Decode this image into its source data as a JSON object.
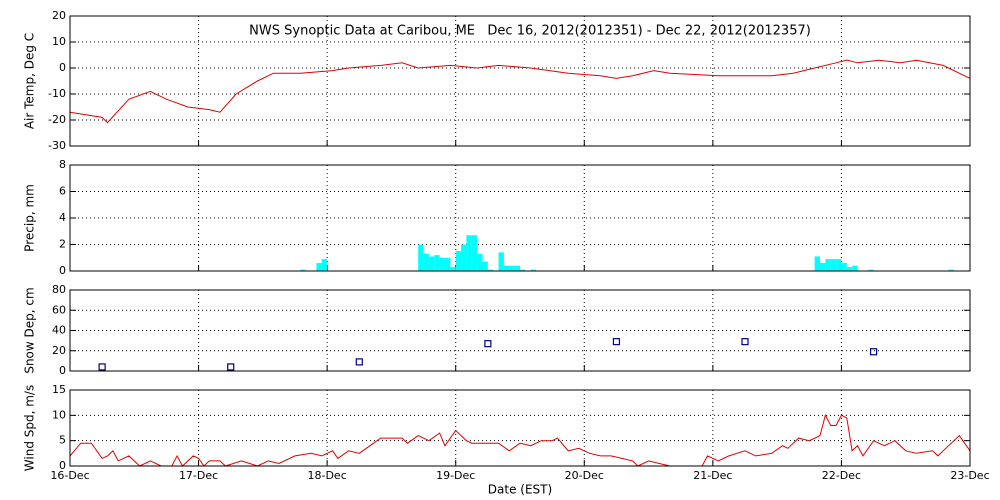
{
  "chart_data": [
    {
      "type": "line",
      "title": "NWS Synoptic Data at Caribou, ME   Dec 16, 2012(2012351) - Dec 22, 2012(2012357)",
      "y_label": "Air Temp, Deg C",
      "color": "#e00000",
      "x": [
        0,
        6,
        7,
        11,
        15,
        18,
        22,
        26,
        28,
        31,
        35,
        38,
        43,
        49,
        52,
        58,
        62,
        65,
        71,
        76,
        80,
        86,
        93,
        99,
        102,
        105,
        109,
        112,
        121,
        131,
        135,
        139,
        143,
        145,
        147,
        151,
        155,
        158,
        163,
        167,
        168
      ],
      "values": [
        -17,
        -19,
        -21,
        -12,
        -9,
        -12,
        -15,
        -16,
        -17,
        -10,
        -5,
        -2,
        -2,
        -1,
        0,
        1,
        2,
        0,
        1,
        0,
        1,
        0,
        -2,
        -3,
        -4,
        -3,
        -1,
        -2,
        -3,
        -3,
        -2,
        0,
        2,
        3,
        2,
        3,
        2,
        3,
        1,
        -3,
        -4
      ],
      "xlim": [
        0,
        168
      ],
      "xticks": [
        0,
        24,
        48,
        72,
        96,
        120,
        144,
        168
      ],
      "ylim": [
        -30,
        20
      ],
      "yticks": [
        -30,
        -20,
        -10,
        0,
        10,
        20
      ],
      "grid": true
    },
    {
      "type": "bar",
      "y_label": "Precip, mm",
      "color": "#00ffff",
      "x": [
        43,
        46,
        47,
        65,
        66,
        67,
        68,
        69,
        70,
        71,
        72,
        73,
        74,
        75,
        76,
        77,
        78,
        80,
        81,
        82,
        83,
        84,
        86,
        139,
        140,
        141,
        142,
        143,
        144,
        145,
        146,
        149,
        164
      ],
      "values": [
        0.1,
        0.6,
        0.9,
        2.0,
        1.3,
        1.1,
        1.2,
        1.0,
        1.0,
        0.3,
        1.5,
        2.0,
        2.7,
        2.7,
        1.3,
        0.7,
        0.1,
        1.4,
        0.4,
        0.4,
        0.4,
        0.1,
        0.1,
        1.1,
        0.6,
        0.9,
        0.9,
        0.9,
        0.6,
        0.3,
        0.4,
        0.1,
        0.1
      ],
      "xlim": [
        0,
        168
      ],
      "xticks": [
        0,
        24,
        48,
        72,
        96,
        120,
        144,
        168
      ],
      "ylim": [
        0,
        8
      ],
      "yticks": [
        0,
        2,
        4,
        6,
        8
      ],
      "grid": true
    },
    {
      "type": "scatter",
      "y_label": "Snow Dep, cm",
      "color": "#000080",
      "x": [
        6,
        30,
        54,
        78,
        102,
        126,
        150
      ],
      "values": [
        4,
        4,
        9,
        27,
        29,
        29,
        19
      ],
      "xlim": [
        0,
        168
      ],
      "xticks": [
        0,
        24,
        48,
        72,
        96,
        120,
        144,
        168
      ],
      "ylim": [
        0,
        80
      ],
      "yticks": [
        0,
        20,
        40,
        60,
        80
      ],
      "grid": true
    },
    {
      "type": "line",
      "y_label": "Wind Spd, m/s",
      "x_label": "Date (EST)",
      "color": "#e00000",
      "x": [
        0,
        2,
        4,
        6,
        7,
        8,
        9,
        11,
        13,
        15,
        17,
        19,
        20,
        21,
        23,
        24,
        25,
        26,
        28,
        29,
        32,
        35,
        37,
        39,
        42,
        45,
        47,
        49,
        50,
        52,
        54,
        56,
        58,
        62,
        63,
        65,
        67,
        69,
        70,
        72,
        74,
        75,
        80,
        82,
        84,
        86,
        88,
        90,
        91,
        93,
        95,
        97,
        99,
        101,
        103,
        105,
        106,
        108,
        110,
        112,
        118,
        119,
        121,
        123,
        126,
        128,
        131,
        133,
        134,
        136,
        138,
        140,
        141,
        142,
        143,
        144,
        145,
        146,
        147,
        148,
        150,
        152,
        154,
        156,
        158,
        161,
        162,
        164,
        166,
        168
      ],
      "values": [
        2,
        4.5,
        4.5,
        1.5,
        2,
        3,
        1,
        2,
        0,
        1,
        0,
        0,
        2,
        0,
        2,
        1.5,
        0,
        1,
        1,
        0,
        1,
        0,
        1,
        0.5,
        2,
        2.5,
        2,
        3,
        1.5,
        3,
        2.5,
        4,
        5.5,
        5.5,
        4.5,
        6,
        5,
        6.5,
        4,
        7,
        5,
        4.5,
        4.5,
        3,
        4.5,
        4,
        5,
        5,
        5.5,
        3,
        3.5,
        2.5,
        2,
        2,
        1.5,
        1,
        0,
        1,
        0.5,
        0,
        0,
        2,
        1,
        2,
        3,
        2,
        2.5,
        4,
        3.5,
        5.5,
        5,
        6,
        10,
        8,
        8,
        10,
        9.5,
        3,
        4,
        2,
        5,
        4,
        5,
        3,
        2.5,
        3,
        2,
        4,
        6,
        3
      ],
      "xlim": [
        0,
        168
      ],
      "xticks": [
        {
          "value": 0,
          "label": "16-Dec"
        },
        {
          "value": 24,
          "label": "17-Dec"
        },
        {
          "value": 48,
          "label": "18-Dec"
        },
        {
          "value": 72,
          "label": "19-Dec"
        },
        {
          "value": 96,
          "label": "20-Dec"
        },
        {
          "value": 120,
          "label": "21-Dec"
        },
        {
          "value": 144,
          "label": "22-Dec"
        },
        {
          "value": 168,
          "label": "23-Dec"
        }
      ],
      "ylim": [
        0,
        15
      ],
      "yticks": [
        0,
        5,
        10,
        15
      ],
      "grid": true
    }
  ]
}
